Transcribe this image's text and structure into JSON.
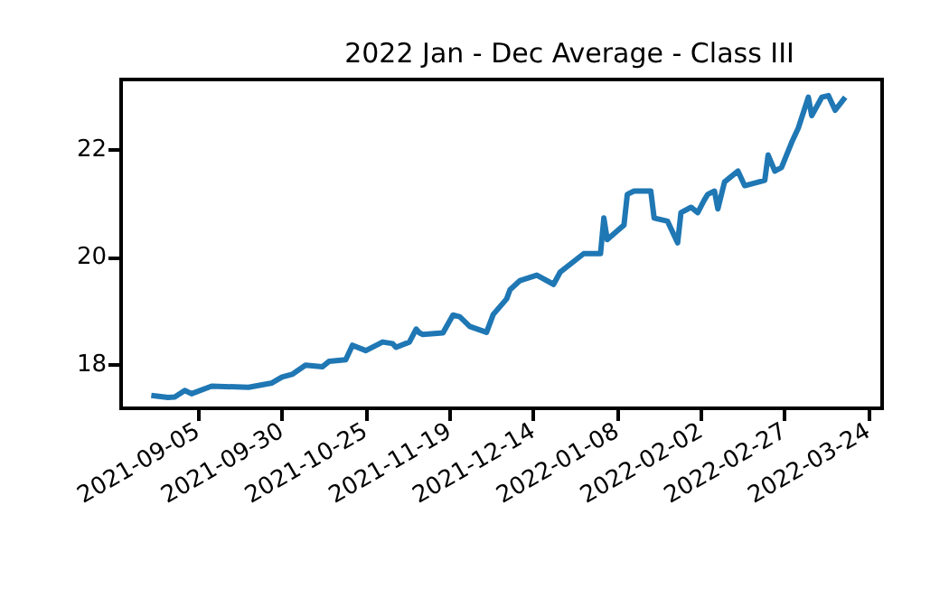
{
  "chart_data": {
    "type": "line",
    "title": "2022 Jan - Dec Average - Class III",
    "x": [
      "2021-08-22",
      "2021-08-27",
      "2021-08-29",
      "2021-09-01",
      "2021-09-03",
      "2021-09-09",
      "2021-09-20",
      "2021-09-27",
      "2021-09-30",
      "2021-10-03",
      "2021-10-07",
      "2021-10-12",
      "2021-10-14",
      "2021-10-19",
      "2021-10-21",
      "2021-10-25",
      "2021-10-30",
      "2021-11-02",
      "2021-11-03",
      "2021-11-07",
      "2021-11-09",
      "2021-11-10",
      "2021-11-11",
      "2021-11-17",
      "2021-11-20",
      "2021-11-22",
      "2021-11-25",
      "2021-11-30",
      "2021-12-02",
      "2021-12-06",
      "2021-12-07",
      "2021-12-10",
      "2021-12-15",
      "2021-12-20",
      "2021-12-22",
      "2021-12-29",
      "2022-01-03",
      "2022-01-04",
      "2022-01-05",
      "2022-01-10",
      "2022-01-11",
      "2022-01-13",
      "2022-01-18",
      "2022-01-19",
      "2022-01-23",
      "2022-01-26",
      "2022-01-27",
      "2022-01-30",
      "2022-02-01",
      "2022-02-03",
      "2022-02-04",
      "2022-02-06",
      "2022-02-07",
      "2022-02-09",
      "2022-02-13",
      "2022-02-15",
      "2022-02-21",
      "2022-02-22",
      "2022-02-24",
      "2022-02-26",
      "2022-03-01",
      "2022-03-03",
      "2022-03-06",
      "2022-03-07",
      "2022-03-10",
      "2022-03-12",
      "2022-03-14",
      "2022-03-17"
    ],
    "series": [
      {
        "color": "#1f77b4",
        "values": [
          17.44,
          17.4,
          17.41,
          17.53,
          17.47,
          17.61,
          17.59,
          17.67,
          17.78,
          17.83,
          18.0,
          17.97,
          18.07,
          18.1,
          18.37,
          18.27,
          18.43,
          18.4,
          18.33,
          18.43,
          18.67,
          18.6,
          18.57,
          18.6,
          18.93,
          18.9,
          18.72,
          18.61,
          18.94,
          19.23,
          19.4,
          19.57,
          19.67,
          19.5,
          19.73,
          20.07,
          20.07,
          20.73,
          20.33,
          20.6,
          21.17,
          21.23,
          21.23,
          20.73,
          20.67,
          20.27,
          20.83,
          20.93,
          20.83,
          21.07,
          21.17,
          21.23,
          20.9,
          21.4,
          21.6,
          21.33,
          21.43,
          21.9,
          21.6,
          21.67,
          22.13,
          22.4,
          22.97,
          22.63,
          22.97,
          23.0,
          22.73,
          22.97
        ]
      }
    ],
    "xlim": [
      "2021-08-13",
      "2022-03-28"
    ],
    "xticks": [
      "2021-09-05",
      "2021-09-30",
      "2021-10-25",
      "2021-11-19",
      "2021-12-14",
      "2022-01-08",
      "2022-02-02",
      "2022-02-27",
      "2022-03-24"
    ],
    "ylim": [
      17.2,
      23.3
    ],
    "yticks": [
      18,
      20,
      22
    ],
    "grid": false,
    "marker": "none",
    "line_style": "solid"
  }
}
